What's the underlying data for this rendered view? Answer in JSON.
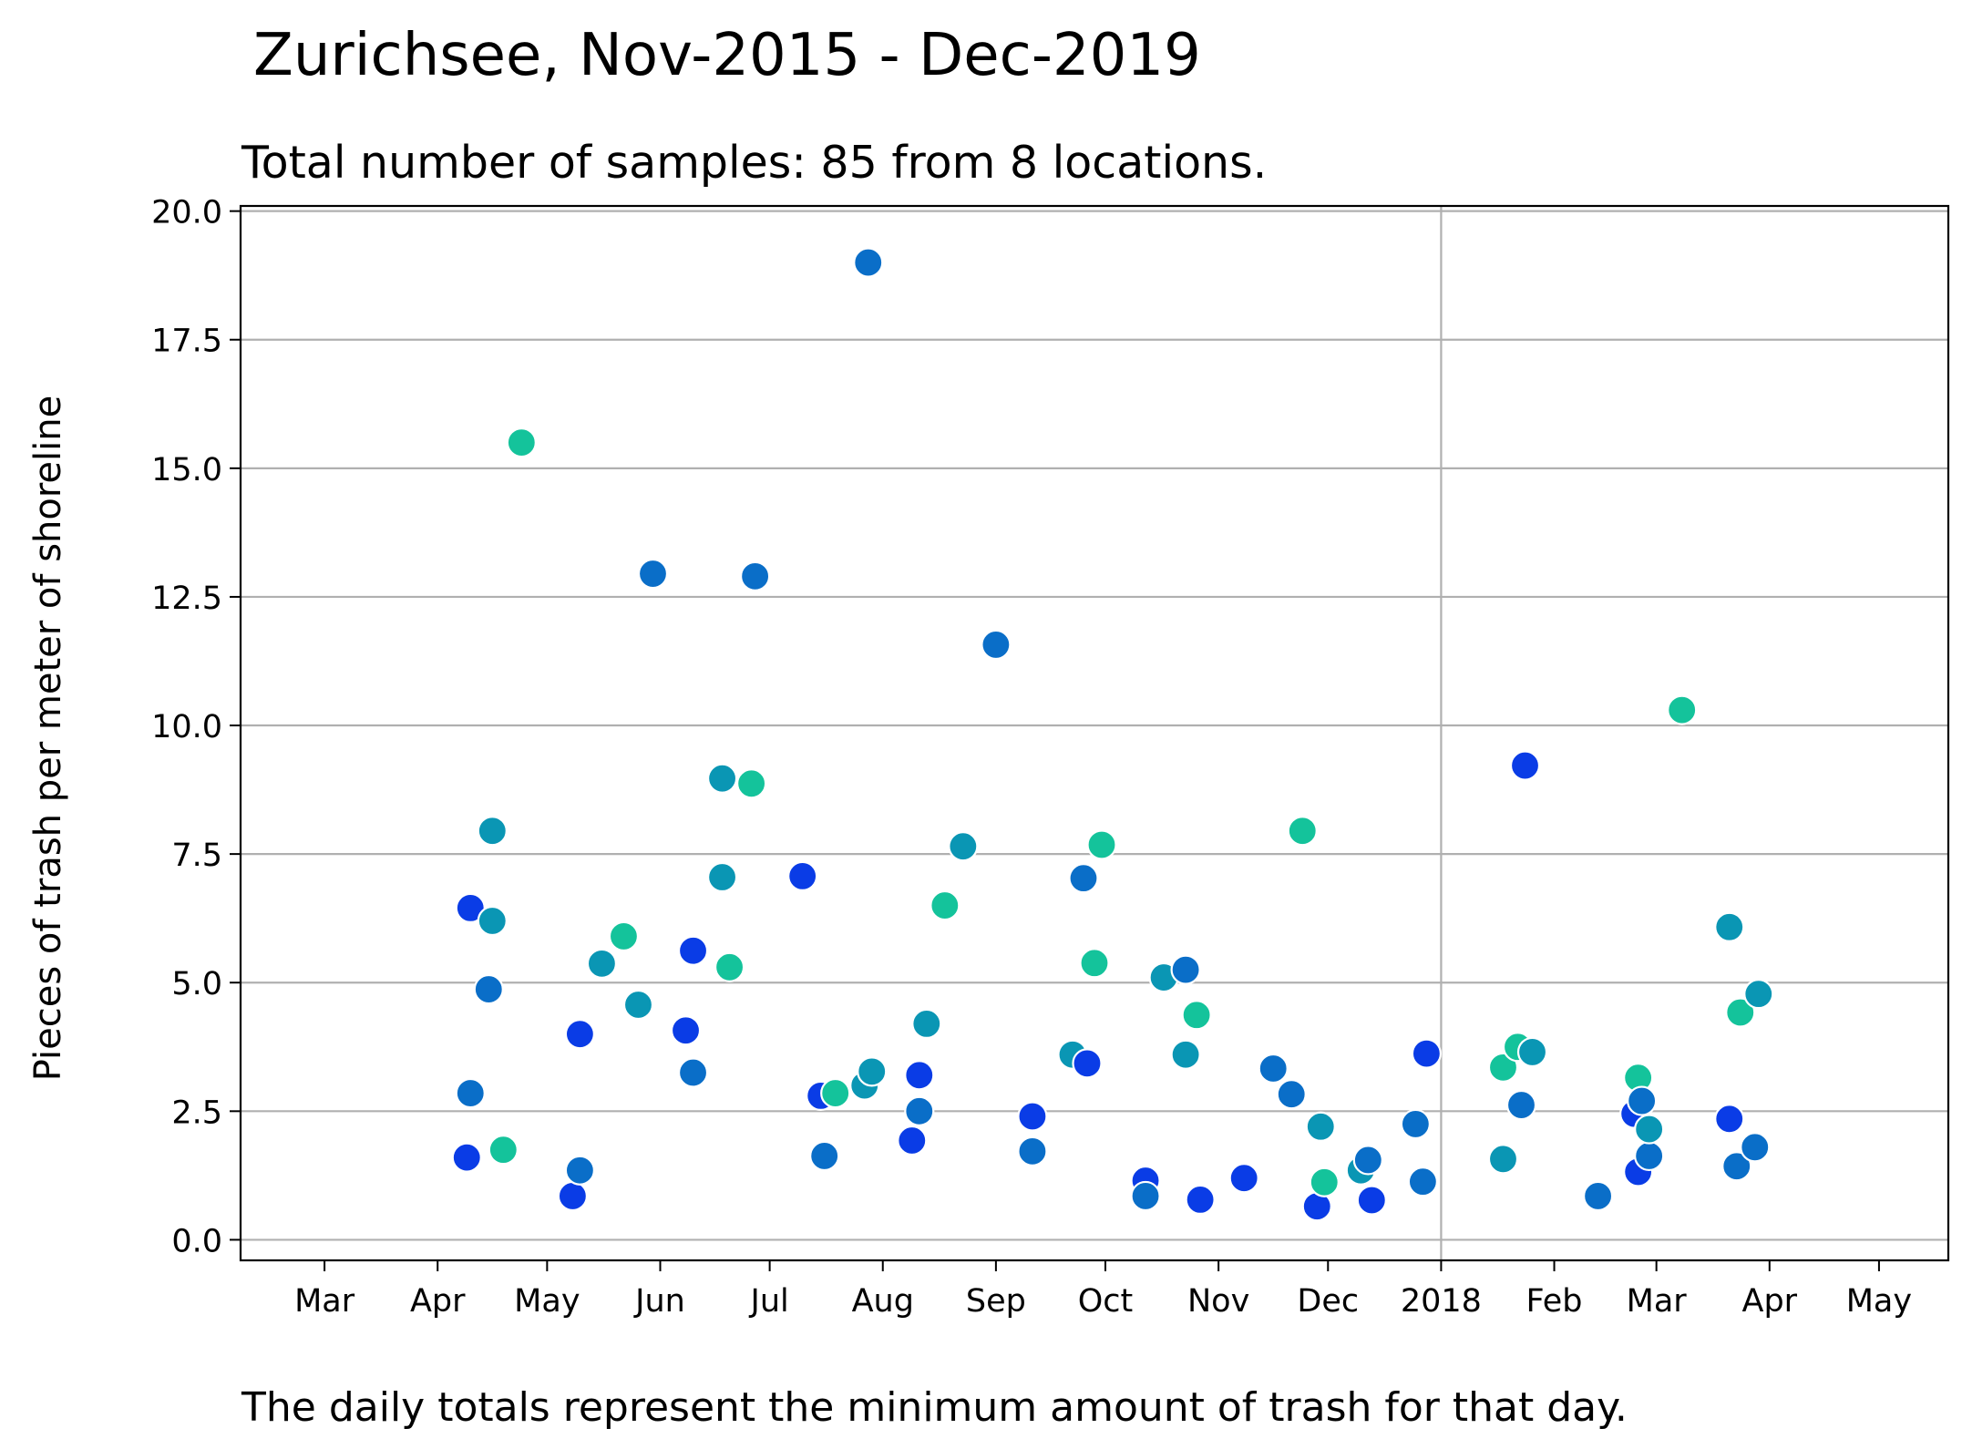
{
  "chart_data": {
    "type": "scatter",
    "title": "Zurichsee, Nov-2015 - Dec-2019",
    "subtitle": "Total number of samples: 85 from 8 locations.",
    "ylabel": "Pieces of trash per meter of shoreline",
    "xlabel": "",
    "caption": "The daily totals represent the minimum amount of trash for that day.",
    "xlim": [
      "2017-02-06",
      "2018-05-20"
    ],
    "ylim": [
      -0.4,
      20.1
    ],
    "yticks": [
      0.0,
      2.5,
      5.0,
      7.5,
      10.0,
      12.5,
      15.0,
      17.5,
      20.0
    ],
    "ytick_labels": [
      "0.0",
      "2.5",
      "5.0",
      "7.5",
      "10.0",
      "12.5",
      "15.0",
      "17.5",
      "20.0"
    ],
    "xticks": [
      "2017-03-01",
      "2017-04-01",
      "2017-05-01",
      "2017-06-01",
      "2017-07-01",
      "2017-08-01",
      "2017-09-01",
      "2017-10-01",
      "2017-11-01",
      "2017-12-01",
      "2018-01-01",
      "2018-02-01",
      "2018-03-01",
      "2018-04-01",
      "2018-05-01"
    ],
    "xtick_labels": [
      "Mar",
      "Apr",
      "May",
      "Jun",
      "Jul",
      "Aug",
      "Sep",
      "Oct",
      "Nov",
      "Dec",
      "2018",
      "Feb",
      "Mar",
      "Apr",
      "May"
    ],
    "grid": true,
    "grid_axis": "y",
    "vertical_gridline": "2018-01-01",
    "colors": {
      "blue": "#0a3ce6",
      "mid_blue": "#0a6ec8",
      "teal": "#0a96b4",
      "green_teal": "#14c39b"
    },
    "points": [
      {
        "x": "2017-04-09",
        "y": 1.6,
        "color": "blue"
      },
      {
        "x": "2017-04-10",
        "y": 6.45,
        "color": "blue"
      },
      {
        "x": "2017-04-10",
        "y": 2.85,
        "color": "mid_blue"
      },
      {
        "x": "2017-04-15",
        "y": 4.87,
        "color": "mid_blue"
      },
      {
        "x": "2017-04-16",
        "y": 7.95,
        "color": "teal"
      },
      {
        "x": "2017-04-16",
        "y": 6.2,
        "color": "teal"
      },
      {
        "x": "2017-04-19",
        "y": 1.75,
        "color": "green_teal"
      },
      {
        "x": "2017-04-24",
        "y": 15.5,
        "color": "green_teal"
      },
      {
        "x": "2017-05-08",
        "y": 0.85,
        "color": "blue"
      },
      {
        "x": "2017-05-10",
        "y": 4.0,
        "color": "blue"
      },
      {
        "x": "2017-05-10",
        "y": 1.35,
        "color": "mid_blue"
      },
      {
        "x": "2017-05-16",
        "y": 5.37,
        "color": "teal"
      },
      {
        "x": "2017-05-22",
        "y": 5.9,
        "color": "green_teal"
      },
      {
        "x": "2017-05-26",
        "y": 4.57,
        "color": "teal"
      },
      {
        "x": "2017-05-30",
        "y": 12.95,
        "color": "mid_blue"
      },
      {
        "x": "2017-06-08",
        "y": 4.07,
        "color": "blue"
      },
      {
        "x": "2017-06-10",
        "y": 5.62,
        "color": "blue"
      },
      {
        "x": "2017-06-10",
        "y": 3.25,
        "color": "mid_blue"
      },
      {
        "x": "2017-06-18",
        "y": 8.97,
        "color": "teal"
      },
      {
        "x": "2017-06-18",
        "y": 7.05,
        "color": "teal"
      },
      {
        "x": "2017-06-20",
        "y": 5.3,
        "color": "green_teal"
      },
      {
        "x": "2017-06-26",
        "y": 8.87,
        "color": "green_teal"
      },
      {
        "x": "2017-06-27",
        "y": 12.9,
        "color": "mid_blue"
      },
      {
        "x": "2017-07-10",
        "y": 7.07,
        "color": "blue"
      },
      {
        "x": "2017-07-15",
        "y": 2.8,
        "color": "blue"
      },
      {
        "x": "2017-07-16",
        "y": 1.63,
        "color": "mid_blue"
      },
      {
        "x": "2017-07-19",
        "y": 2.85,
        "color": "green_teal"
      },
      {
        "x": "2017-07-27",
        "y": 3.0,
        "color": "teal"
      },
      {
        "x": "2017-07-28",
        "y": 19.0,
        "color": "mid_blue"
      },
      {
        "x": "2017-07-29",
        "y": 3.27,
        "color": "teal"
      },
      {
        "x": "2017-08-09",
        "y": 1.93,
        "color": "blue"
      },
      {
        "x": "2017-08-11",
        "y": 3.2,
        "color": "blue"
      },
      {
        "x": "2017-08-11",
        "y": 2.5,
        "color": "mid_blue"
      },
      {
        "x": "2017-08-13",
        "y": 4.2,
        "color": "teal"
      },
      {
        "x": "2017-08-18",
        "y": 6.5,
        "color": "green_teal"
      },
      {
        "x": "2017-08-23",
        "y": 7.65,
        "color": "teal"
      },
      {
        "x": "2017-09-01",
        "y": 11.57,
        "color": "mid_blue"
      },
      {
        "x": "2017-09-11",
        "y": 2.4,
        "color": "blue"
      },
      {
        "x": "2017-09-11",
        "y": 1.72,
        "color": "mid_blue"
      },
      {
        "x": "2017-09-22",
        "y": 3.6,
        "color": "teal"
      },
      {
        "x": "2017-09-25",
        "y": 7.03,
        "color": "mid_blue"
      },
      {
        "x": "2017-09-26",
        "y": 3.43,
        "color": "blue"
      },
      {
        "x": "2017-09-28",
        "y": 5.38,
        "color": "green_teal"
      },
      {
        "x": "2017-09-30",
        "y": 7.68,
        "color": "green_teal"
      },
      {
        "x": "2017-10-12",
        "y": 1.15,
        "color": "blue"
      },
      {
        "x": "2017-10-12",
        "y": 0.85,
        "color": "mid_blue"
      },
      {
        "x": "2017-10-17",
        "y": 5.1,
        "color": "teal"
      },
      {
        "x": "2017-10-23",
        "y": 5.25,
        "color": "mid_blue"
      },
      {
        "x": "2017-10-23",
        "y": 3.6,
        "color": "teal"
      },
      {
        "x": "2017-10-26",
        "y": 4.37,
        "color": "green_teal"
      },
      {
        "x": "2017-10-27",
        "y": 0.78,
        "color": "blue"
      },
      {
        "x": "2017-11-08",
        "y": 1.2,
        "color": "blue"
      },
      {
        "x": "2017-11-16",
        "y": 3.33,
        "color": "mid_blue"
      },
      {
        "x": "2017-11-21",
        "y": 2.83,
        "color": "mid_blue"
      },
      {
        "x": "2017-11-24",
        "y": 7.95,
        "color": "green_teal"
      },
      {
        "x": "2017-11-28",
        "y": 0.65,
        "color": "blue"
      },
      {
        "x": "2017-11-29",
        "y": 2.2,
        "color": "teal"
      },
      {
        "x": "2017-11-30",
        "y": 1.12,
        "color": "green_teal"
      },
      {
        "x": "2017-12-10",
        "y": 1.35,
        "color": "teal"
      },
      {
        "x": "2017-12-12",
        "y": 1.55,
        "color": "mid_blue"
      },
      {
        "x": "2017-12-13",
        "y": 0.77,
        "color": "blue"
      },
      {
        "x": "2017-12-25",
        "y": 2.25,
        "color": "mid_blue"
      },
      {
        "x": "2017-12-27",
        "y": 1.13,
        "color": "mid_blue"
      },
      {
        "x": "2017-12-28",
        "y": 3.62,
        "color": "blue"
      },
      {
        "x": "2018-01-18",
        "y": 3.35,
        "color": "green_teal"
      },
      {
        "x": "2018-01-18",
        "y": 1.57,
        "color": "teal"
      },
      {
        "x": "2018-01-22",
        "y": 3.75,
        "color": "green_teal"
      },
      {
        "x": "2018-01-23",
        "y": 2.62,
        "color": "mid_blue"
      },
      {
        "x": "2018-01-24",
        "y": 9.22,
        "color": "blue"
      },
      {
        "x": "2018-01-26",
        "y": 3.65,
        "color": "teal"
      },
      {
        "x": "2018-02-13",
        "y": 0.85,
        "color": "mid_blue"
      },
      {
        "x": "2018-02-23",
        "y": 2.45,
        "color": "blue"
      },
      {
        "x": "2018-02-24",
        "y": 1.32,
        "color": "blue"
      },
      {
        "x": "2018-02-24",
        "y": 3.15,
        "color": "green_teal"
      },
      {
        "x": "2018-02-25",
        "y": 2.7,
        "color": "mid_blue"
      },
      {
        "x": "2018-02-27",
        "y": 1.63,
        "color": "mid_blue"
      },
      {
        "x": "2018-02-27",
        "y": 2.15,
        "color": "teal"
      },
      {
        "x": "2018-03-08",
        "y": 10.3,
        "color": "green_teal"
      },
      {
        "x": "2018-03-21",
        "y": 6.08,
        "color": "teal"
      },
      {
        "x": "2018-03-21",
        "y": 2.35,
        "color": "blue"
      },
      {
        "x": "2018-03-23",
        "y": 1.43,
        "color": "mid_blue"
      },
      {
        "x": "2018-03-24",
        "y": 4.42,
        "color": "green_teal"
      },
      {
        "x": "2018-03-28",
        "y": 1.8,
        "color": "mid_blue"
      },
      {
        "x": "2018-03-29",
        "y": 4.78,
        "color": "teal"
      }
    ]
  }
}
